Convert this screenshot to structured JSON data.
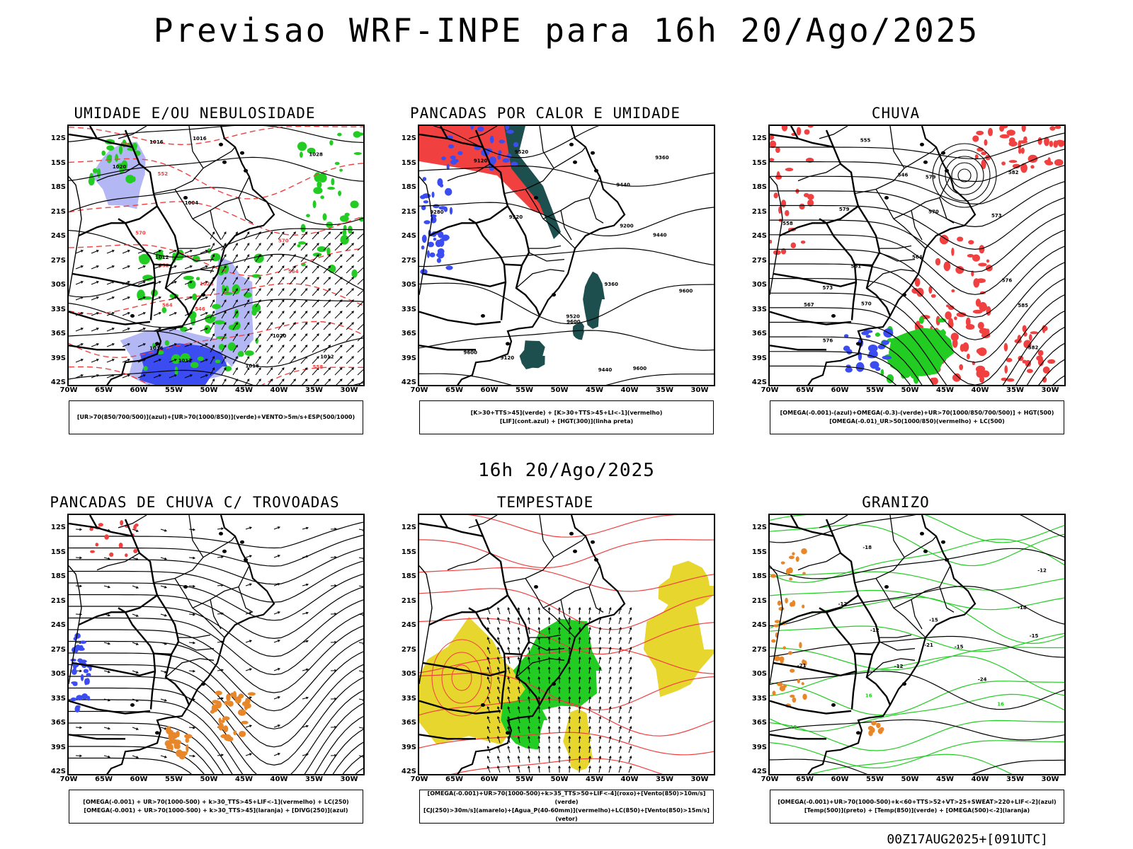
{
  "header": {
    "title": "Previsao WRF-INPE  para 16h 20/Ago/2025",
    "mid_time": "16h 20/Ago/2025",
    "run_info": "00Z17AUG2025+[091UTC]"
  },
  "axes": {
    "lat_labels": [
      "12S",
      "15S",
      "18S",
      "21S",
      "24S",
      "27S",
      "30S",
      "33S",
      "36S",
      "39S",
      "42S"
    ],
    "lon_labels": [
      "70W",
      "65W",
      "60W",
      "55W",
      "50W",
      "45W",
      "40W",
      "35W",
      "30W"
    ]
  },
  "colors": {
    "blue": "#3b4cf0",
    "light_blue": "#b3b8f5",
    "green": "#22cc22",
    "red": "#f04040",
    "dark_teal": "#1e4f4f",
    "orange": "#e8862a",
    "yellow": "#e6d62e"
  },
  "panels": [
    {
      "id": "umidade",
      "title": "UMIDADE E/OU NEBULOSIDADE",
      "legend": [
        "[UR>70(850/700/500)](azul)+[UR>70(1000/850)](verde)+VENTO>5m/s+ESP(500/1000)"
      ],
      "labels": [
        "1012",
        "1016",
        "1016",
        "1020",
        "1016",
        "1020",
        "1012",
        "1012",
        "1016",
        "1004",
        "1028",
        "1028",
        "570",
        "576",
        "564",
        "558",
        "552",
        "546",
        "552",
        "564",
        "570"
      ]
    },
    {
      "id": "pancadas_calor",
      "title": "PANCADAS POR CALOR E UMIDADE",
      "legend": [
        "[K>30+TTS>45](verde) + [K>30+TTS>45+LI<-1](vermelho)",
        "[LIF](cont.azul) + [HGT(300)](linha preta)"
      ],
      "labels": [
        "9600",
        "9600",
        "9600",
        "9600",
        "9520",
        "9520",
        "9520",
        "9440",
        "9440",
        "9440",
        "9360",
        "9360",
        "9280",
        "9200",
        "9120",
        "9120"
      ]
    },
    {
      "id": "chuva",
      "title": "CHUVA",
      "legend": [
        "[OMEGA(-0.001)-(azul)+OMEGA(-0.3)-(verde)+UR>70(1000/850/700/500)] + HGT(500)",
        "[OMEGA(-0.01)_UR>50(1000/850)(vermelho) + LC(500)"
      ],
      "labels": [
        "585",
        "582",
        "579",
        "576",
        "573",
        "570",
        "567",
        "564",
        "561",
        "558",
        "555",
        "546",
        "582",
        "579",
        "576",
        "573",
        "570"
      ]
    },
    {
      "id": "pancadas_trovoadas",
      "title": "PANCADAS DE CHUVA C/ TROVOADAS",
      "legend": [
        "[OMEGA(-0.001) + UR>70(1000-500) + k>30_TTS>45+LIF<-1](vermelho) + LC(250)",
        "[OMEGA(-0.001) + UR>70(1000-500) + k>30_TTS>45](laranja) + [DIVG(250)](azul)"
      ],
      "labels": []
    },
    {
      "id": "tempestade",
      "title": "TEMPESTADE",
      "legend": [
        "[OMEGA(-0.001)+UR>70(1000-500)+k>35_TTS>50+LIF<-4](roxo)+[Vento(850)>10m/s](verde)",
        "[CJ(250)>30m/s](amarelo)+[Agua_P(40-60mm)](vermelho)+LC(850)+[Vento(850)>15m/s](vetor)"
      ],
      "labels": []
    },
    {
      "id": "granizo",
      "title": "GRANIZO",
      "legend": [
        "[OMEGA(-0.001)+UR>70(1000-500)+k<60+TTS>52+VT>25+SWEAT>220+LIF<-2](azul)",
        "[Temp(500)](preto) + [Temp(850)](verde) + [OMEGA(500)<-2](laranja)"
      ],
      "labels": [
        "-12",
        "-12",
        "-12",
        "-12",
        "-15",
        "-15",
        "-15",
        "-18",
        "-18",
        "-21",
        "-21",
        "-24",
        "18",
        "16",
        "16"
      ]
    }
  ]
}
